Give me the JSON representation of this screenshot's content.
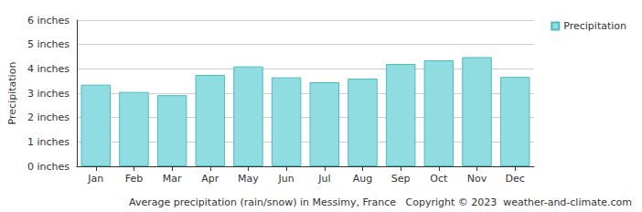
{
  "chart_data": {
    "type": "bar",
    "title": "Average precipitation (rain/snow) in Messimy, France",
    "annotations": [
      "Copyright © 2023  weather-and-climate.com"
    ],
    "y_label": "Precipitation",
    "categories": [
      "Jan",
      "Feb",
      "Mar",
      "Apr",
      "May",
      "Jun",
      "Jul",
      "Aug",
      "Sep",
      "Oct",
      "Nov",
      "Dec"
    ],
    "series": [
      {
        "name": "Precipitation",
        "color": "#8fdce1",
        "values": [
          3.35,
          3.05,
          2.92,
          3.75,
          4.1,
          3.65,
          3.45,
          3.6,
          4.2,
          4.35,
          4.48,
          3.67
        ]
      }
    ],
    "ylim": [
      0,
      6
    ],
    "yticks": [
      {
        "value": 0,
        "label": "0 inches"
      },
      {
        "value": 1,
        "label": "1 inches"
      },
      {
        "value": 2,
        "label": "2 inches"
      },
      {
        "value": 3,
        "label": "3 inches"
      },
      {
        "value": 4,
        "label": "4 inches"
      },
      {
        "value": 5,
        "label": "5 inches"
      },
      {
        "value": 6,
        "label": "6 inches"
      }
    ],
    "grid": true,
    "legend": "upper right"
  }
}
